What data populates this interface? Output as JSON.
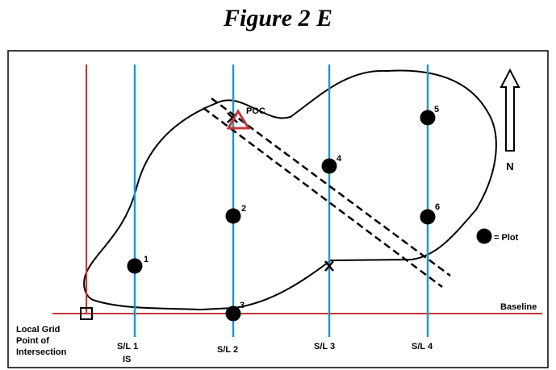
{
  "title": "Figure 2 E",
  "labels": {
    "poc": "POC",
    "north": "N",
    "legend_plot": "= Plot",
    "baseline": "Baseline",
    "grid_point_line1": "Local Grid",
    "grid_point_line2": "Point of",
    "grid_point_line3": "Intersection",
    "is": "IS"
  },
  "strip_lines": [
    "S/L 1",
    "S/L 2",
    "S/L 3",
    "S/L 4"
  ],
  "plots": [
    "1",
    "2",
    "3",
    "4",
    "5",
    "6"
  ],
  "colors": {
    "strip_line": "#1e9ad6",
    "baseline": "#c0393b",
    "poc_marker": "#c0393b",
    "ink": "#000000"
  }
}
